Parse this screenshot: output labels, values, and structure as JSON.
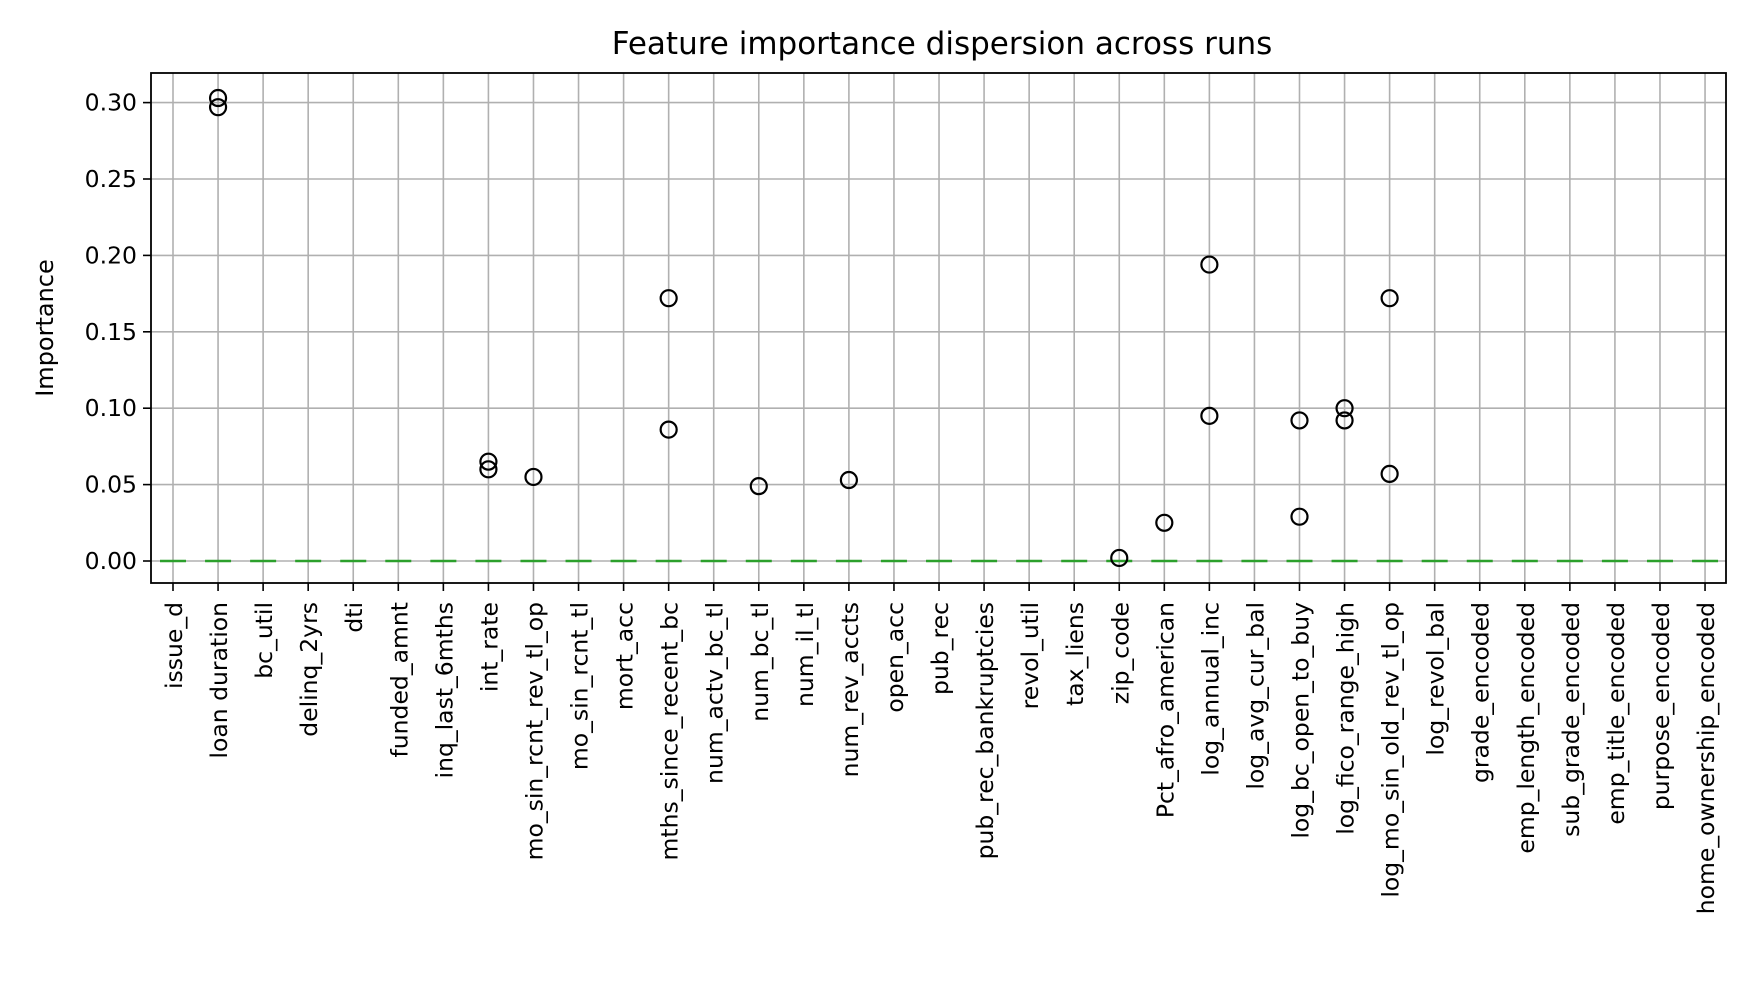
{
  "chart_data": {
    "type": "box",
    "title": "Feature importance dispersion across runs",
    "xlabel": "",
    "ylabel": "Importance",
    "ylim": [
      -0.015,
      0.318
    ],
    "yticks": [
      0.0,
      0.05,
      0.1,
      0.15,
      0.2,
      0.25,
      0.3
    ],
    "ytick_labels": [
      "0.00",
      "0.05",
      "0.10",
      "0.15",
      "0.20",
      "0.25",
      "0.30"
    ],
    "grid": true,
    "median_color": "#2ca02c",
    "categories": [
      "issue_d",
      "loan duration",
      "bc_util",
      "delinq_2yrs",
      "dti",
      "funded_amnt",
      "inq_last_6mths",
      "int_rate",
      "mo_sin_rcnt_rev_tl_op",
      "mo_sin_rcnt_tl",
      "mort_acc",
      "mths_since_recent_bc",
      "num_actv_bc_tl",
      "num_bc_tl",
      "num_il_tl",
      "num_rev_accts",
      "open_acc",
      "pub_rec",
      "pub_rec_bankruptcies",
      "revol_util",
      "tax_liens",
      "zip_code",
      "Pct_afro_american",
      "log_annual_inc",
      "log_avg_cur_bal",
      "log_bc_open_to_buy",
      "log_fico_range_high",
      "log_mo_sin_old_rev_tl_op",
      "log_revol_bal",
      "grade_encoded",
      "emp_length_encoded",
      "sub_grade_encoded",
      "emp_title_encoded",
      "purpose_encoded",
      "home_ownership_encoded"
    ],
    "medians": [
      0,
      0,
      0,
      0,
      0,
      0,
      0,
      0,
      0,
      0,
      0,
      0,
      0,
      0,
      0,
      0,
      0,
      0,
      0,
      0,
      0,
      0,
      0,
      0,
      0,
      0,
      0,
      0,
      0,
      0,
      0,
      0,
      0,
      0,
      0
    ],
    "outliers": [
      [],
      [
        0.303,
        0.297
      ],
      [],
      [],
      [],
      [],
      [],
      [
        0.065,
        0.06
      ],
      [
        0.055
      ],
      [],
      [],
      [
        0.172,
        0.086
      ],
      [],
      [
        0.049
      ],
      [],
      [
        0.053
      ],
      [],
      [],
      [],
      [],
      [],
      [
        0.002
      ],
      [
        0.025
      ],
      [
        0.194,
        0.095
      ],
      [],
      [
        0.092,
        0.029
      ],
      [
        0.1,
        0.092
      ],
      [
        0.172,
        0.057
      ],
      [],
      [],
      [],
      [],
      [],
      [],
      []
    ]
  }
}
